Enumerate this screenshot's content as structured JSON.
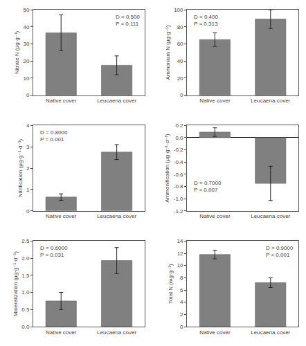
{
  "chart_data": [
    {
      "type": "bar",
      "ylabel": "Nitrate N (μg·g⁻¹)",
      "categories": [
        "Native cover",
        "Leucaena cover"
      ],
      "values": [
        36.5,
        17.5
      ],
      "errors": [
        10.5,
        5.5
      ],
      "ylim": [
        0,
        50
      ],
      "yticks": [
        0,
        10,
        20,
        30,
        40,
        50
      ],
      "annotation": "D = 0.500\nP = 0.111",
      "color": "#808080",
      "grid": false
    },
    {
      "type": "bar",
      "ylabel": "Ammonium N (μg·g⁻¹)",
      "categories": [
        "Native cover",
        "Leucaena cover"
      ],
      "values": [
        65.0,
        89.0
      ],
      "errors": [
        8.0,
        11.0
      ],
      "ylim": [
        0,
        100
      ],
      "yticks": [
        0,
        20,
        40,
        60,
        80,
        100
      ],
      "annotation": "D = 0.400\nP = 0.313",
      "color": "#808080",
      "grid": false
    },
    {
      "type": "bar",
      "ylabel": "Nitrification (μg·g⁻¹·d⁻¹)",
      "categories": [
        "Native cover",
        "Leucaena cover"
      ],
      "values": [
        0.65,
        2.75
      ],
      "errors": [
        0.15,
        0.35
      ],
      "ylim": [
        0,
        4
      ],
      "yticks": [
        0,
        1,
        2,
        3,
        4
      ],
      "annotation": "D = 0.8000\nP = 0.001",
      "color": "#808080",
      "grid": false
    },
    {
      "type": "bar",
      "ylabel": "Ammonification (μg·g⁻¹·d⁻¹)",
      "categories": [
        "Native cover",
        "Leucaena cover"
      ],
      "values": [
        0.09,
        -0.75
      ],
      "errors": [
        0.07,
        0.28
      ],
      "ylim": [
        -1.2,
        0.2
      ],
      "yticks": [
        -1.2,
        {
          "value": -1,
          "label": "-1.0"
        },
        -0.8,
        -0.6,
        -0.4,
        -0.2,
        {
          "value": 0,
          "label": "0.0"
        },
        0.2
      ],
      "annotation": "D = 0.7000\nP = 0.007",
      "color": "#808080",
      "grid": false
    },
    {
      "type": "bar",
      "ylabel": "Mineralization (μg·g⁻¹·d⁻¹)",
      "categories": [
        "Native cover",
        "Leucaena cover"
      ],
      "values": [
        0.75,
        1.93
      ],
      "errors": [
        0.25,
        0.38
      ],
      "ylim": [
        0,
        2.5
      ],
      "yticks": [
        {
          "value": 0,
          "label": "0.0"
        },
        0.5,
        {
          "value": 1,
          "label": "1.0"
        },
        1.5,
        {
          "value": 2,
          "label": "2.0"
        },
        2.5
      ],
      "annotation": "D = 0.6000\nP = 0.031",
      "color": "#808080",
      "grid": false
    },
    {
      "type": "bar",
      "ylabel": "Total N (mg·g⁻¹)",
      "categories": [
        "Native cover",
        "Leucaena cover"
      ],
      "values": [
        11.8,
        7.2
      ],
      "errors": [
        0.7,
        0.8
      ],
      "ylim": [
        0,
        14
      ],
      "yticks": [
        0,
        2,
        4,
        6,
        8,
        10,
        12,
        14
      ],
      "annotation": "D = 0.9000\nP < 0.001",
      "color": "#808080",
      "grid": false
    }
  ]
}
